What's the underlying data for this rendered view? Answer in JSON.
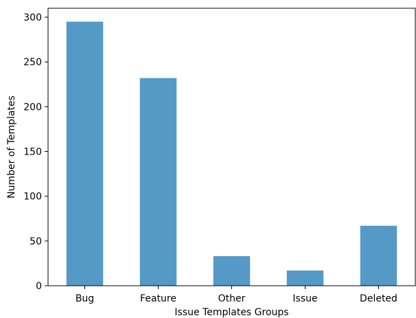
{
  "chart_data": {
    "type": "bar",
    "title": "",
    "xlabel": "Issue Templates Groups",
    "ylabel": "Number of Templates",
    "categories": [
      "Bug",
      "Feature",
      "Other",
      "Issue",
      "Deleted"
    ],
    "values": [
      295,
      232,
      33,
      17,
      67
    ],
    "ylim": [
      0,
      310
    ],
    "yticks": [
      0,
      50,
      100,
      150,
      200,
      250,
      300
    ],
    "grid": false,
    "legend": "none",
    "bar_color": "#5599c7"
  }
}
